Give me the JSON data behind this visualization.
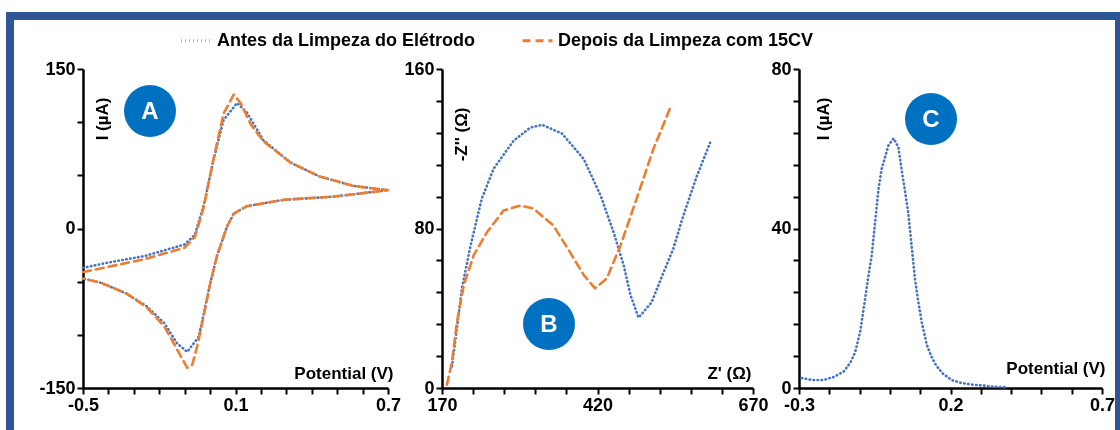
{
  "chart_data": [
    {
      "type": "line",
      "legend": "top",
      "xlabel": "Potential (V)",
      "ylabel": "I (µA)",
      "annotations": [
        "A"
      ],
      "xlim": [
        -0.5,
        0.7
      ],
      "xticks": [
        -0.5,
        {
          "value": -0.4,
          "label": null
        },
        {
          "value": -0.3,
          "label": null
        },
        {
          "value": -0.2,
          "label": null
        },
        {
          "value": -0.1,
          "label": null
        },
        {
          "value": 0,
          "label": null
        },
        0.1,
        {
          "value": 0.2,
          "label": null
        },
        {
          "value": 0.3,
          "label": null
        },
        {
          "value": 0.4,
          "label": null
        },
        {
          "value": 0.5,
          "label": null
        },
        {
          "value": 0.6,
          "label": null
        },
        0.7
      ],
      "ylim": [
        -150,
        150
      ],
      "yticks": [
        -150,
        {
          "value": -100,
          "label": null
        },
        {
          "value": -50,
          "label": null
        },
        0,
        {
          "value": 50,
          "label": null
        },
        {
          "value": 100,
          "label": null
        },
        150
      ],
      "series": [
        {
          "name": "Antes da Limpeza do Elétrodo",
          "color": "#4472c4",
          "line_style": "dotted",
          "x": [
            -0.5,
            -0.4,
            -0.26,
            -0.1,
            -0.06,
            -0.025,
            0.014,
            0.053,
            0.106,
            0.145,
            0.21,
            0.316,
            0.43,
            0.565,
            0.7,
            0.486,
            0.29,
            0.145,
            0.093,
            0.067,
            0.027,
            0.001,
            -0.025,
            -0.045,
            -0.09,
            -0.13,
            -0.18,
            -0.25,
            -0.33,
            -0.43,
            -0.5
          ],
          "values": [
            -37,
            -32,
            -26,
            -15,
            -6,
            22,
            65,
            102,
            118,
            109,
            83,
            62,
            49,
            40,
            36,
            30,
            27,
            21,
            14,
            2,
            -26,
            -51,
            -80,
            -102,
            -116,
            -108,
            -89,
            -73,
            -61,
            -51,
            -47
          ]
        },
        {
          "name": "Depois da Limpeza com 15CV",
          "color": "#ed7d31",
          "line_style": "dashed",
          "x": [
            -0.5,
            -0.4,
            -0.26,
            -0.1,
            -0.06,
            -0.025,
            0.014,
            0.053,
            0.093,
            0.12,
            0.16,
            0.21,
            0.316,
            0.43,
            0.565,
            0.7,
            0.486,
            0.29,
            0.145,
            0.093,
            0.067,
            0.027,
            0.001,
            -0.025,
            -0.05,
            -0.07,
            -0.09,
            -0.12,
            -0.18,
            -0.25,
            -0.33,
            -0.43,
            -0.5
          ],
          "values": [
            -41,
            -36,
            -29,
            -18,
            -8,
            20,
            66,
            108,
            126,
            118,
            98,
            82,
            62,
            49,
            40,
            36,
            30,
            27,
            21,
            14,
            2,
            -26,
            -51,
            -82,
            -110,
            -128,
            -131,
            -118,
            -92,
            -74,
            -61,
            -51,
            -47
          ]
        }
      ]
    },
    {
      "type": "line",
      "xlabel": "Z' (Ω)",
      "ylabel": "-Z'' (Ω)",
      "annotations": [
        "B"
      ],
      "xlim": [
        170,
        670
      ],
      "xticks": [
        170,
        {
          "value": 220,
          "label": null
        },
        {
          "value": 270,
          "label": null
        },
        {
          "value": 320,
          "label": null
        },
        {
          "value": 370,
          "label": null
        },
        420,
        {
          "value": 470,
          "label": null
        },
        {
          "value": 520,
          "label": null
        },
        {
          "value": 570,
          "label": null
        },
        {
          "value": 620,
          "label": null
        },
        670
      ],
      "ylim": [
        0,
        160
      ],
      "yticks": [
        0,
        {
          "value": 16,
          "label": null
        },
        {
          "value": 32,
          "label": null
        },
        {
          "value": 48,
          "label": null
        },
        {
          "value": 64,
          "label": null
        },
        80,
        {
          "value": 96,
          "label": null
        },
        {
          "value": 112,
          "label": null
        },
        {
          "value": 128,
          "label": null
        },
        {
          "value": 144,
          "label": null
        },
        160
      ],
      "series": [
        {
          "color": "#4472c4",
          "line_style": "dotted",
          "x": [
            186,
            194,
            202,
            216,
            234,
            253,
            285,
            312,
            331,
            363,
            398,
            425,
            446,
            462,
            473,
            486,
            507,
            521,
            542,
            558,
            580,
            601
          ],
          "values": [
            10.8,
            30,
            50,
            71.5,
            95,
            110,
            124,
            130.6,
            132,
            127.6,
            114.8,
            96.5,
            78,
            61.6,
            46.6,
            35.3,
            43,
            54,
            70,
            86.5,
            106.5,
            123
          ]
        },
        {
          "color": "#ed7d31",
          "line_style": "dashed",
          "x": [
            178,
            186,
            194,
            205,
            221,
            242,
            269,
            296,
            317,
            349,
            376,
            398,
            416,
            435,
            457,
            483,
            510,
            537
          ],
          "values": [
            1.7,
            13,
            33,
            51.6,
            66.6,
            78,
            89,
            91.5,
            90,
            81.5,
            68,
            56.6,
            50,
            55,
            71.5,
            95,
            120,
            140.6
          ]
        }
      ]
    },
    {
      "type": "line",
      "xlabel": "Potential (V)",
      "ylabel": "I (µA)",
      "annotations": [
        "C"
      ],
      "xlim": [
        -0.3,
        0.7
      ],
      "xticks": [
        -0.3,
        {
          "value": -0.2,
          "label": null
        },
        {
          "value": -0.1,
          "label": null
        },
        {
          "value": 0,
          "label": null
        },
        {
          "value": 0.1,
          "label": null
        },
        0.2,
        {
          "value": 0.3,
          "label": null
        },
        {
          "value": 0.4,
          "label": null
        },
        {
          "value": 0.5,
          "label": null
        },
        {
          "value": 0.6,
          "label": null
        },
        0.7
      ],
      "ylim": [
        0,
        80
      ],
      "yticks": [
        0,
        {
          "value": 8,
          "label": null
        },
        {
          "value": 16,
          "label": null
        },
        {
          "value": 24,
          "label": null
        },
        {
          "value": 32,
          "label": null
        },
        40,
        {
          "value": 48,
          "label": null
        },
        {
          "value": 56,
          "label": null
        },
        {
          "value": 64,
          "label": null
        },
        {
          "value": 72,
          "label": null
        },
        80
      ],
      "series": [
        {
          "color": "#4472c4",
          "line_style": "dotted",
          "x": [
            -0.291,
            -0.256,
            -0.22,
            -0.184,
            -0.153,
            -0.131,
            -0.115,
            -0.098,
            -0.082,
            -0.071,
            -0.06,
            -0.049,
            -0.038,
            -0.027,
            -0.005,
            0.012,
            0.028,
            0.039,
            0.05,
            0.061,
            0.072,
            0.083,
            0.094,
            0.105,
            0.122,
            0.135,
            0.152,
            0.175,
            0.204,
            0.24,
            0.276,
            0.311,
            0.348,
            0.386
          ],
          "values": [
            2.5,
            2,
            2,
            2.8,
            4.1,
            6.3,
            8.9,
            14.1,
            22.3,
            28,
            33.3,
            41.5,
            49.7,
            55,
            60.8,
            62.6,
            60.4,
            54.6,
            49.3,
            43.6,
            35.4,
            27.2,
            21.5,
            16.5,
            10.8,
            8.2,
            5.7,
            3.6,
            2,
            1.2,
            0.8,
            0.6,
            0.3,
            0.2
          ]
        }
      ]
    }
  ]
}
